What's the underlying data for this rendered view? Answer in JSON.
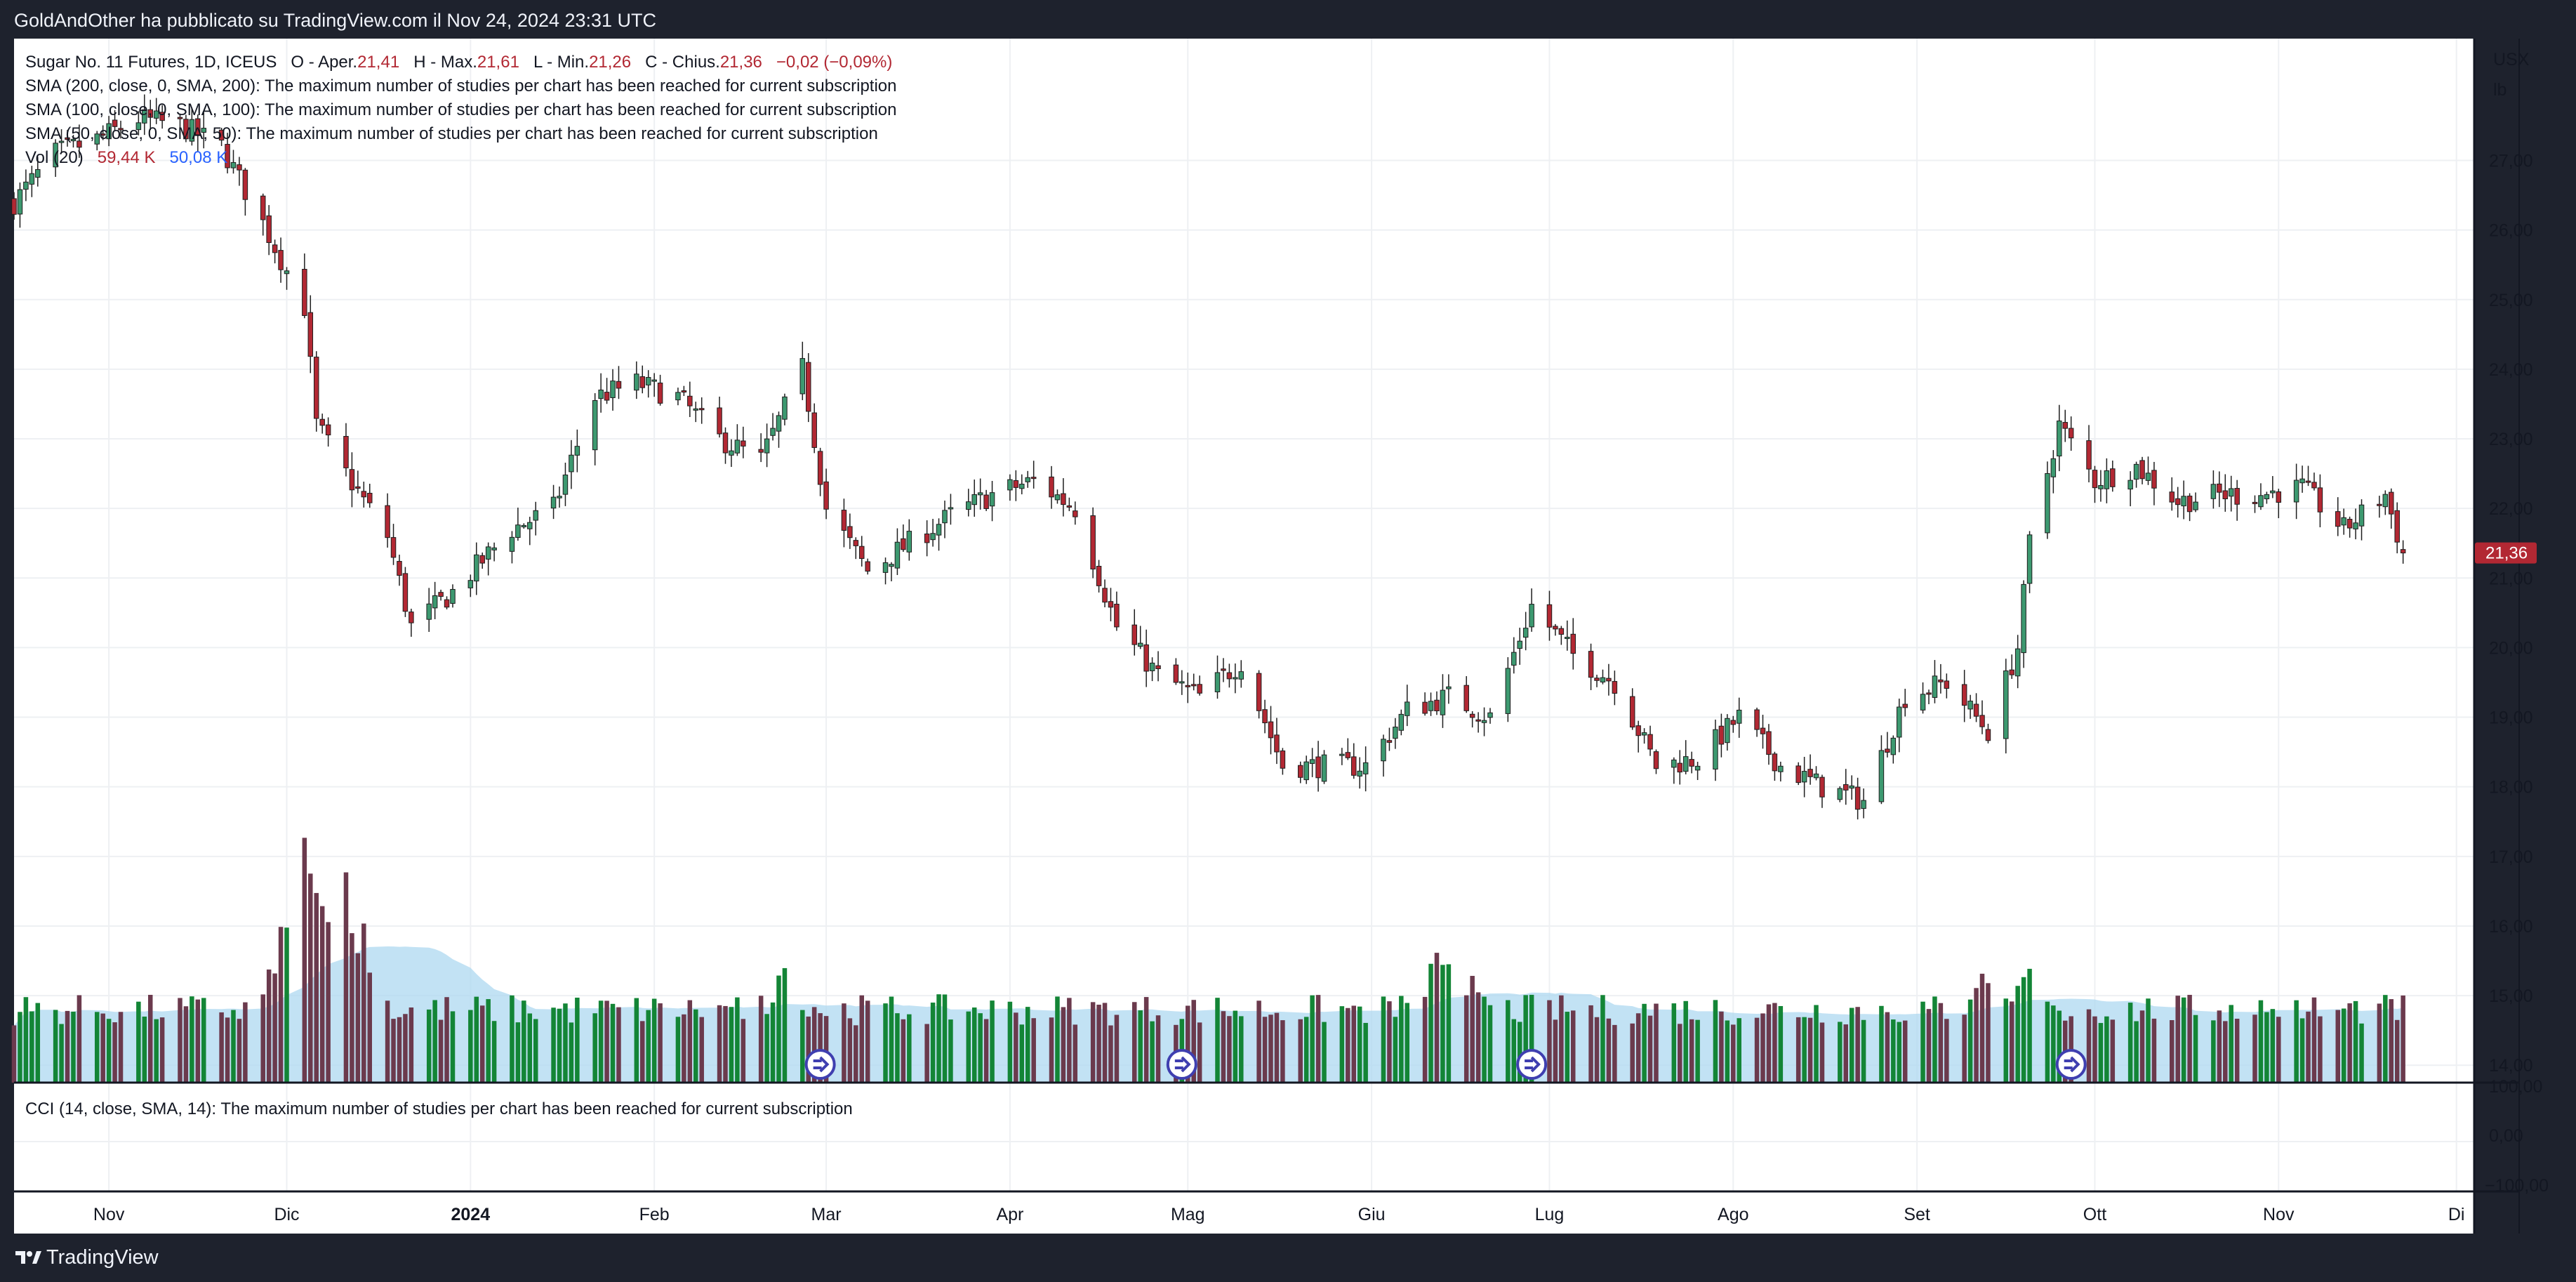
{
  "header": {
    "publisher_text": "GoldAndOther ha pubblicato su TradingView.com il Nov 24, 2024 23:31 UTC"
  },
  "footer": {
    "brand": "TradingView"
  },
  "legend": {
    "symbol": "Sugar No. 11 Futures, 1D, ICEUS",
    "o_label": "O - Aper.",
    "o_val": "21,41",
    "h_label": "H - Max.",
    "h_val": "21,61",
    "l_label": "L - Min.",
    "l_val": "21,26",
    "c_label": "C - Chius.",
    "c_val": "21,36",
    "chg": "−0,02 (−0,09%)",
    "sma200": "SMA (200, close, 0, SMA, 200): The maximum number of studies per chart has been reached for current subscription",
    "sma100": "SMA (100, close, 0, SMA, 100): The maximum number of studies per chart has been reached for current subscription",
    "sma50": "SMA (50, close, 0, SMA, 50): The maximum number of studies per chart has been reached for current subscription",
    "vol_label": "Vol (20)",
    "vol_val": "59,44 K",
    "vol_ma": "50,08 K",
    "cci": "CCI (14, close, SMA, 14): The maximum number of studies per chart has been reached for current subscription"
  },
  "price_axis": {
    "unit_line1": "USX",
    "unit_line2": "lb",
    "last_price": "21,36",
    "cci_labels": [
      "100,00",
      "0,00",
      "−100,00"
    ]
  },
  "colors": {
    "up": "#3d9970",
    "down": "#b22833",
    "vol_up": "#138536",
    "vol_down": "#6b3a4d",
    "vol_ma_fill": "#aed8f0"
  },
  "chart_data": {
    "type": "candlestick",
    "title": "Sugar No. 11 Futures, 1D, ICEUS",
    "y_unit": "USX/lb",
    "ylim": [
      13.75,
      28.75
    ],
    "y_ticks": [
      14,
      15,
      16,
      17,
      18,
      19,
      20,
      21,
      22,
      23,
      24,
      25,
      26,
      27
    ],
    "x_ticks": [
      "Nov",
      "Dic",
      "2024",
      "Feb",
      "Mar",
      "Apr",
      "Mag",
      "Giu",
      "Lug",
      "Ago",
      "Set",
      "Ott",
      "Nov",
      "Di"
    ],
    "x_tick_months": [
      "2023-11",
      "2023-12",
      "2024-01",
      "2024-02",
      "2024-03",
      "2024-04",
      "2024-05",
      "2024-06",
      "2024-07",
      "2024-08",
      "2024-09",
      "2024-10",
      "2024-11",
      "2024-12"
    ],
    "x_range": [
      "2023-10-16",
      "2024-12-04"
    ],
    "close_anchors": [
      [
        "2023-10-16",
        26.4
      ],
      [
        "2023-10-23",
        27.1
      ],
      [
        "2023-10-30",
        27.3
      ],
      [
        "2023-11-06",
        27.6
      ],
      [
        "2023-11-13",
        27.5
      ],
      [
        "2023-11-20",
        27.2
      ],
      [
        "2023-11-27",
        26.1
      ],
      [
        "2023-12-04",
        24.9
      ],
      [
        "2023-12-06",
        23.2
      ],
      [
        "2023-12-11",
        22.5
      ],
      [
        "2023-12-18",
        21.6
      ],
      [
        "2023-12-22",
        20.3
      ],
      [
        "2023-12-29",
        20.8
      ],
      [
        "2024-01-08",
        21.7
      ],
      [
        "2024-01-15",
        22.0
      ],
      [
        "2024-01-22",
        23.6
      ],
      [
        "2024-01-29",
        23.8
      ],
      [
        "2024-02-05",
        23.6
      ],
      [
        "2024-02-12",
        23.0
      ],
      [
        "2024-02-19",
        22.7
      ],
      [
        "2024-02-26",
        24.0
      ],
      [
        "2024-03-01",
        22.0
      ],
      [
        "2024-03-08",
        21.1
      ],
      [
        "2024-03-15",
        21.5
      ],
      [
        "2024-03-22",
        21.9
      ],
      [
        "2024-03-29",
        22.2
      ],
      [
        "2024-04-05",
        22.4
      ],
      [
        "2024-04-12",
        22.0
      ],
      [
        "2024-04-19",
        20.3
      ],
      [
        "2024-04-26",
        19.6
      ],
      [
        "2024-05-03",
        19.3
      ],
      [
        "2024-05-10",
        19.8
      ],
      [
        "2024-05-17",
        18.3
      ],
      [
        "2024-05-24",
        18.3
      ],
      [
        "2024-05-31",
        18.3
      ],
      [
        "2024-06-07",
        19.1
      ],
      [
        "2024-06-14",
        19.3
      ],
      [
        "2024-06-21",
        19.0
      ],
      [
        "2024-06-28",
        20.6
      ],
      [
        "2024-07-05",
        19.9
      ],
      [
        "2024-07-12",
        19.5
      ],
      [
        "2024-07-19",
        18.3
      ],
      [
        "2024-07-26",
        18.4
      ],
      [
        "2024-08-02",
        19.0
      ],
      [
        "2024-08-09",
        18.3
      ],
      [
        "2024-08-16",
        18.0
      ],
      [
        "2024-08-23",
        17.8
      ],
      [
        "2024-08-30",
        19.3
      ],
      [
        "2024-09-06",
        19.5
      ],
      [
        "2024-09-13",
        18.8
      ],
      [
        "2024-09-18",
        20.0
      ],
      [
        "2024-09-20",
        21.5
      ],
      [
        "2024-09-25",
        23.2
      ],
      [
        "2024-10-01",
        22.4
      ],
      [
        "2024-10-08",
        22.6
      ],
      [
        "2024-10-15",
        22.1
      ],
      [
        "2024-10-22",
        22.2
      ],
      [
        "2024-10-29",
        22.2
      ],
      [
        "2024-11-05",
        22.3
      ],
      [
        "2024-11-12",
        21.7
      ],
      [
        "2024-11-19",
        22.2
      ],
      [
        "2024-11-22",
        21.36
      ]
    ],
    "volume": {
      "peaks": [
        [
          "2023-12-04",
          1.0
        ],
        [
          "2023-12-11",
          0.85
        ],
        [
          "2024-06-14",
          0.62
        ],
        [
          "2024-09-13",
          0.48
        ],
        [
          "2024-09-20",
          0.46
        ],
        [
          "2024-11-01",
          0.35
        ],
        [
          "2024-02-23",
          0.46
        ]
      ],
      "ma_level_note": "area"
    },
    "dividend_markers": [
      "2024-02-29",
      "2024-04-30",
      "2024-06-28",
      "2024-09-27"
    ]
  }
}
